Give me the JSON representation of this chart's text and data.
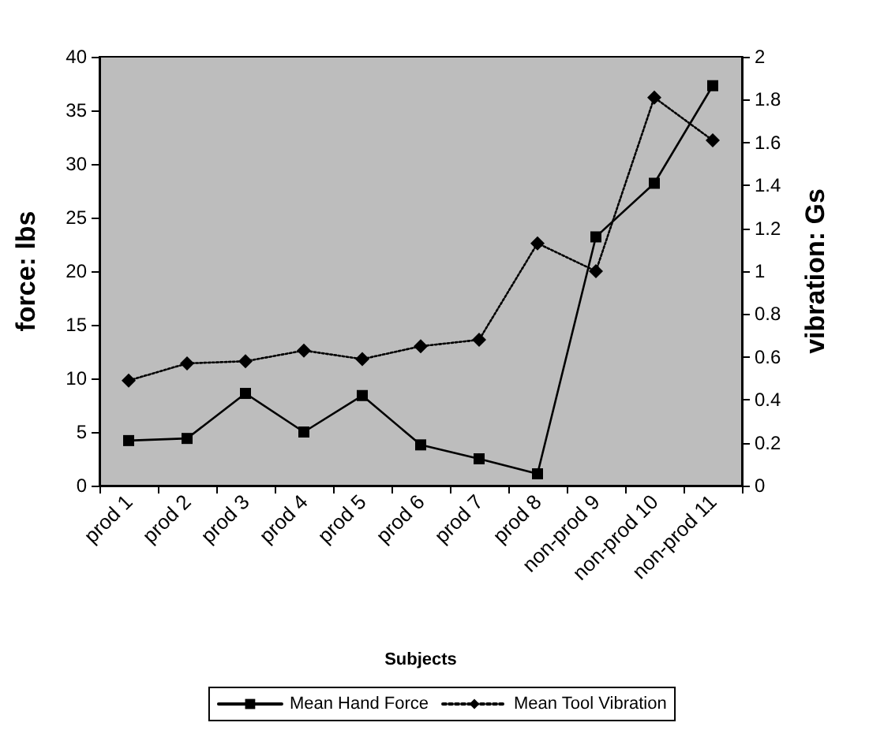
{
  "chart_data": {
    "type": "line",
    "xlabel": "Subjects",
    "ylabel": "force: lbs",
    "y2label": "vibration: Gs",
    "categories": [
      "prod 1",
      "prod 2",
      "prod 3",
      "prod 4",
      "prod 5",
      "prod 6",
      "prod 7",
      "prod 8",
      "non-prod 9",
      "non-prod 10",
      "non-prod 11"
    ],
    "series": [
      {
        "name": "Mean Hand Force",
        "color": "#000000",
        "marker": "square",
        "line_style": "solid",
        "values": [
          4.2,
          4.4,
          8.6,
          5.0,
          8.4,
          3.8,
          2.5,
          1.1,
          23.2,
          28.2,
          37.3
        ]
      },
      {
        "name": "Mean Tool Vibration",
        "color": "#000000",
        "marker": "diamond",
        "line_style": "dotted",
        "axis": "y2",
        "values": [
          0.49,
          0.57,
          0.58,
          0.63,
          0.59,
          0.65,
          0.68,
          1.13,
          1.0,
          1.81,
          1.61
        ]
      }
    ],
    "ylim": [
      0,
      40
    ],
    "yticks": [
      0,
      5,
      10,
      15,
      20,
      25,
      30,
      35,
      40
    ],
    "y2lim": [
      0,
      2
    ],
    "y2ticks": [
      0,
      0.2,
      0.4,
      0.6,
      0.8,
      1,
      1.2,
      1.4,
      1.6,
      1.8,
      2
    ],
    "grid": false,
    "legend": "bottom"
  }
}
